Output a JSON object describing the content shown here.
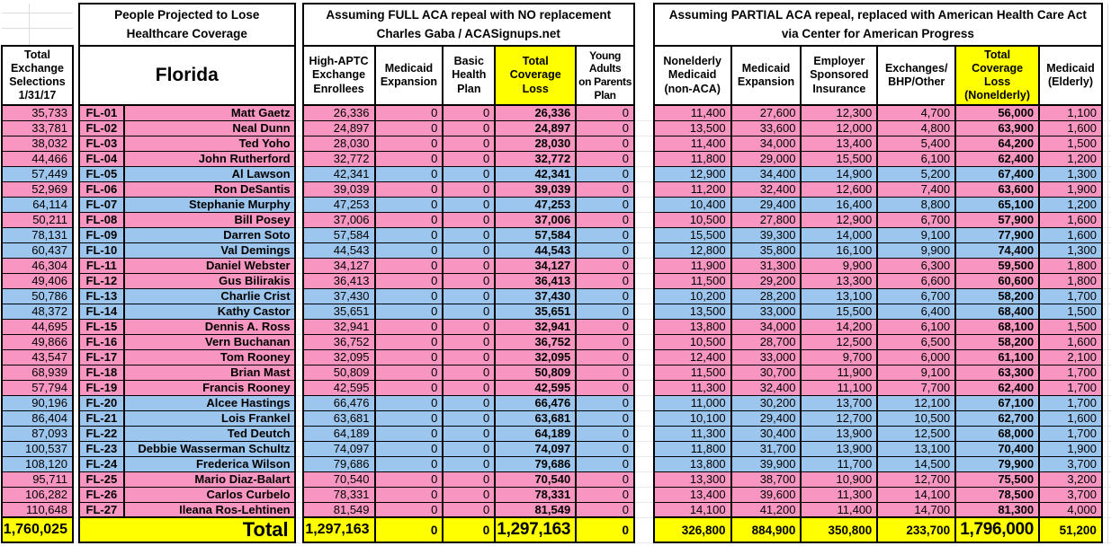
{
  "colors": {
    "republican_row_pink": "#F896C1",
    "democrat_row_blue": "#9DC6EE",
    "highlight_yellow": "#FFFF00",
    "border_black": "#000000",
    "gridline_gray": "#DCDCDC"
  },
  "left_column": {
    "header": "Total\nExchange\nSelections\n1/31/17",
    "total": "1,760,025"
  },
  "florida_section": {
    "band_title": "People Projected to Lose\nHealthcare Coverage",
    "state_label": "Florida",
    "total_label": "Total"
  },
  "full_repeal_section": {
    "band_title": "Assuming FULL ACA repeal with NO replacement\nCharles Gaba / ACASignups.net",
    "columns": [
      "High-APTC\nExchange\nEnrollees",
      "Medicaid\nExpansion",
      "Basic\nHealth\nPlan",
      "Total\nCoverage\nLoss",
      "Young\nAdults\non Parents\nPlan"
    ],
    "totals": [
      "1,297,163",
      "0",
      "0",
      "1,297,163",
      "0"
    ]
  },
  "partial_repeal_section": {
    "band_title": "Assuming PARTIAL ACA repeal, replaced with American Health Care Act\nvia Center for American Progress",
    "columns": [
      "Nonelderly\nMedicaid\n(non-ACA)",
      "Medicaid\nExpansion",
      "Employer\nSponsored\nInsurance",
      "Exchanges/\nBHP/Other",
      "Total\nCoverage\nLoss\n(Nonelderly)",
      "Medicaid\n(Elderly)"
    ],
    "totals": [
      "326,800",
      "884,900",
      "350,800",
      "233,700",
      "1,796,000",
      "51,200"
    ]
  },
  "rows": [
    {
      "code": "FL-01",
      "name": "Matt Gaetz",
      "color": "pink",
      "exchange_selections": "35,733",
      "full": [
        "26,336",
        "0",
        "0",
        "26,336",
        "0"
      ],
      "partial": [
        "11,400",
        "27,600",
        "12,300",
        "4,700",
        "56,000",
        "1,100"
      ]
    },
    {
      "code": "FL-02",
      "name": "Neal Dunn",
      "color": "pink",
      "exchange_selections": "33,781",
      "full": [
        "24,897",
        "0",
        "0",
        "24,897",
        "0"
      ],
      "partial": [
        "13,500",
        "33,600",
        "12,000",
        "4,800",
        "63,900",
        "1,600"
      ]
    },
    {
      "code": "FL-03",
      "name": "Ted Yoho",
      "color": "pink",
      "exchange_selections": "38,032",
      "full": [
        "28,030",
        "0",
        "0",
        "28,030",
        "0"
      ],
      "partial": [
        "11,400",
        "34,000",
        "13,400",
        "5,400",
        "64,200",
        "1,500"
      ]
    },
    {
      "code": "FL-04",
      "name": "John Rutherford",
      "color": "pink",
      "exchange_selections": "44,466",
      "full": [
        "32,772",
        "0",
        "0",
        "32,772",
        "0"
      ],
      "partial": [
        "11,800",
        "29,000",
        "15,500",
        "6,100",
        "62,400",
        "1,200"
      ]
    },
    {
      "code": "FL-05",
      "name": "Al Lawson",
      "color": "blue",
      "exchange_selections": "57,449",
      "full": [
        "42,341",
        "0",
        "0",
        "42,341",
        "0"
      ],
      "partial": [
        "12,900",
        "34,400",
        "14,900",
        "5,200",
        "67,400",
        "1,300"
      ]
    },
    {
      "code": "FL-06",
      "name": "Ron DeSantis",
      "color": "pink",
      "exchange_selections": "52,969",
      "full": [
        "39,039",
        "0",
        "0",
        "39,039",
        "0"
      ],
      "partial": [
        "11,200",
        "32,400",
        "12,600",
        "7,400",
        "63,600",
        "1,900"
      ]
    },
    {
      "code": "FL-07",
      "name": "Stephanie Murphy",
      "color": "blue",
      "exchange_selections": "64,114",
      "full": [
        "47,253",
        "0",
        "0",
        "47,253",
        "0"
      ],
      "partial": [
        "10,400",
        "29,400",
        "16,400",
        "8,800",
        "65,100",
        "1,200"
      ]
    },
    {
      "code": "FL-08",
      "name": "Bill Posey",
      "color": "pink",
      "exchange_selections": "50,211",
      "full": [
        "37,006",
        "0",
        "0",
        "37,006",
        "0"
      ],
      "partial": [
        "10,500",
        "27,800",
        "12,900",
        "6,700",
        "57,900",
        "1,600"
      ]
    },
    {
      "code": "FL-09",
      "name": "Darren Soto",
      "color": "blue",
      "exchange_selections": "78,131",
      "full": [
        "57,584",
        "0",
        "0",
        "57,584",
        "0"
      ],
      "partial": [
        "15,500",
        "39,300",
        "14,000",
        "9,100",
        "77,900",
        "1,600"
      ]
    },
    {
      "code": "FL-10",
      "name": "Val Demings",
      "color": "blue",
      "exchange_selections": "60,437",
      "full": [
        "44,543",
        "0",
        "0",
        "44,543",
        "0"
      ],
      "partial": [
        "12,800",
        "35,800",
        "16,100",
        "9,900",
        "74,400",
        "1,300"
      ]
    },
    {
      "code": "FL-11",
      "name": "Daniel Webster",
      "color": "pink",
      "exchange_selections": "46,304",
      "full": [
        "34,127",
        "0",
        "0",
        "34,127",
        "0"
      ],
      "partial": [
        "11,900",
        "31,300",
        "9,900",
        "6,300",
        "59,500",
        "1,800"
      ]
    },
    {
      "code": "FL-12",
      "name": "Gus Bilirakis",
      "color": "pink",
      "exchange_selections": "49,406",
      "full": [
        "36,413",
        "0",
        "0",
        "36,413",
        "0"
      ],
      "partial": [
        "11,500",
        "29,200",
        "13,300",
        "6,600",
        "60,600",
        "1,800"
      ]
    },
    {
      "code": "FL-13",
      "name": "Charlie Crist",
      "color": "blue",
      "exchange_selections": "50,786",
      "full": [
        "37,430",
        "0",
        "0",
        "37,430",
        "0"
      ],
      "partial": [
        "10,200",
        "28,200",
        "13,100",
        "6,700",
        "58,200",
        "1,700"
      ]
    },
    {
      "code": "FL-14",
      "name": "Kathy Castor",
      "color": "blue",
      "exchange_selections": "48,372",
      "full": [
        "35,651",
        "0",
        "0",
        "35,651",
        "0"
      ],
      "partial": [
        "13,500",
        "33,000",
        "15,500",
        "6,400",
        "68,400",
        "1,500"
      ]
    },
    {
      "code": "FL-15",
      "name": "Dennis A. Ross",
      "color": "pink",
      "exchange_selections": "44,695",
      "full": [
        "32,941",
        "0",
        "0",
        "32,941",
        "0"
      ],
      "partial": [
        "13,800",
        "34,000",
        "14,200",
        "6,100",
        "68,100",
        "1,500"
      ]
    },
    {
      "code": "FL-16",
      "name": "Vern Buchanan",
      "color": "pink",
      "exchange_selections": "49,866",
      "full": [
        "36,752",
        "0",
        "0",
        "36,752",
        "0"
      ],
      "partial": [
        "10,500",
        "28,700",
        "12,500",
        "6,500",
        "58,200",
        "1,600"
      ]
    },
    {
      "code": "FL-17",
      "name": "Tom Rooney",
      "color": "pink",
      "exchange_selections": "43,547",
      "full": [
        "32,095",
        "0",
        "0",
        "32,095",
        "0"
      ],
      "partial": [
        "12,400",
        "33,000",
        "9,700",
        "6,000",
        "61,100",
        "2,100"
      ]
    },
    {
      "code": "FL-18",
      "name": "Brian Mast",
      "color": "pink",
      "exchange_selections": "68,939",
      "full": [
        "50,809",
        "0",
        "0",
        "50,809",
        "0"
      ],
      "partial": [
        "11,500",
        "30,700",
        "11,900",
        "9,100",
        "63,300",
        "1,700"
      ]
    },
    {
      "code": "FL-19",
      "name": "Francis Rooney",
      "color": "pink",
      "exchange_selections": "57,794",
      "full": [
        "42,595",
        "0",
        "0",
        "42,595",
        "0"
      ],
      "partial": [
        "11,300",
        "32,400",
        "11,100",
        "7,700",
        "62,400",
        "1,700"
      ]
    },
    {
      "code": "FL-20",
      "name": "Alcee Hastings",
      "color": "blue",
      "exchange_selections": "90,196",
      "full": [
        "66,476",
        "0",
        "0",
        "66,476",
        "0"
      ],
      "partial": [
        "11,000",
        "30,200",
        "13,700",
        "12,100",
        "67,100",
        "1,700"
      ]
    },
    {
      "code": "FL-21",
      "name": "Lois Frankel",
      "color": "blue",
      "exchange_selections": "86,404",
      "full": [
        "63,681",
        "0",
        "0",
        "63,681",
        "0"
      ],
      "partial": [
        "10,100",
        "29,400",
        "12,700",
        "10,500",
        "62,700",
        "1,600"
      ]
    },
    {
      "code": "FL-22",
      "name": "Ted Deutch",
      "color": "blue",
      "exchange_selections": "87,093",
      "full": [
        "64,189",
        "0",
        "0",
        "64,189",
        "0"
      ],
      "partial": [
        "11,300",
        "30,400",
        "13,900",
        "12,500",
        "68,000",
        "1,700"
      ]
    },
    {
      "code": "FL-23",
      "name": "Debbie Wasserman Schultz",
      "color": "blue",
      "exchange_selections": "100,537",
      "full": [
        "74,097",
        "0",
        "0",
        "74,097",
        "0"
      ],
      "partial": [
        "11,800",
        "31,700",
        "13,900",
        "13,100",
        "70,400",
        "1,900"
      ]
    },
    {
      "code": "FL-24",
      "name": "Frederica Wilson",
      "color": "blue",
      "exchange_selections": "108,120",
      "full": [
        "79,686",
        "0",
        "0",
        "79,686",
        "0"
      ],
      "partial": [
        "13,800",
        "39,900",
        "11,700",
        "14,500",
        "79,900",
        "3,700"
      ]
    },
    {
      "code": "FL-25",
      "name": "Mario Diaz-Balart",
      "color": "pink",
      "exchange_selections": "95,711",
      "full": [
        "70,540",
        "0",
        "0",
        "70,540",
        "0"
      ],
      "partial": [
        "13,300",
        "38,700",
        "10,900",
        "12,700",
        "75,500",
        "3,200"
      ]
    },
    {
      "code": "FL-26",
      "name": "Carlos Curbelo",
      "color": "pink",
      "exchange_selections": "106,282",
      "full": [
        "78,331",
        "0",
        "0",
        "78,331",
        "0"
      ],
      "partial": [
        "13,400",
        "39,600",
        "11,300",
        "14,100",
        "78,500",
        "3,700"
      ]
    },
    {
      "code": "FL-27",
      "name": "Ileana Ros-Lehtinen",
      "color": "pink",
      "exchange_selections": "110,648",
      "full": [
        "81,549",
        "0",
        "0",
        "81,549",
        "0"
      ],
      "partial": [
        "14,100",
        "41,200",
        "11,400",
        "14,700",
        "81,300",
        "4,000"
      ]
    }
  ]
}
